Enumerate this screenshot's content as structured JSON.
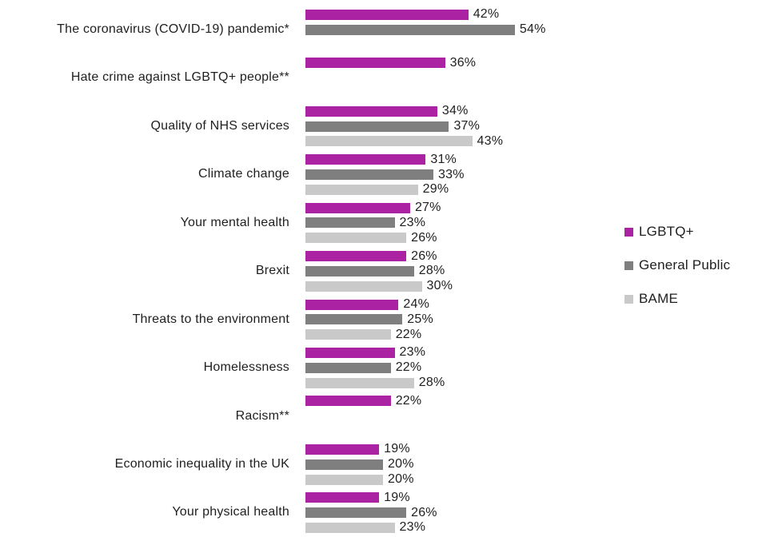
{
  "chart_data": {
    "type": "bar",
    "orientation": "horizontal",
    "unit": "%",
    "title": "",
    "xlabel": "",
    "ylabel": "",
    "xlim": [
      0,
      60
    ],
    "grid": false,
    "legend_position": "right",
    "value_labels": "outside-end",
    "categories": [
      "The coronavirus (COVID-19) pandemic*",
      "Hate crime against LGBTQ+ people**",
      "Quality of NHS services",
      "Climate change",
      "Your mental health",
      "Brexit",
      "Threats to the environment",
      "Homelessness",
      "Racism**",
      "Economic inequality in the UK",
      "Your physical health"
    ],
    "series": [
      {
        "name": "LGBTQ+",
        "color": "#AB23A3",
        "values": [
          42,
          36,
          34,
          31,
          27,
          26,
          24,
          23,
          22,
          19,
          19
        ]
      },
      {
        "name": "General Public",
        "color": "#7F7F7F",
        "values": [
          54,
          null,
          37,
          33,
          23,
          28,
          25,
          22,
          null,
          20,
          26
        ]
      },
      {
        "name": "BAME",
        "color": "#C9C9C9",
        "values": [
          null,
          null,
          43,
          29,
          26,
          30,
          22,
          28,
          null,
          20,
          23
        ]
      }
    ]
  },
  "colors": {
    "background": "#ffffff",
    "text": "#1f1f1f"
  }
}
